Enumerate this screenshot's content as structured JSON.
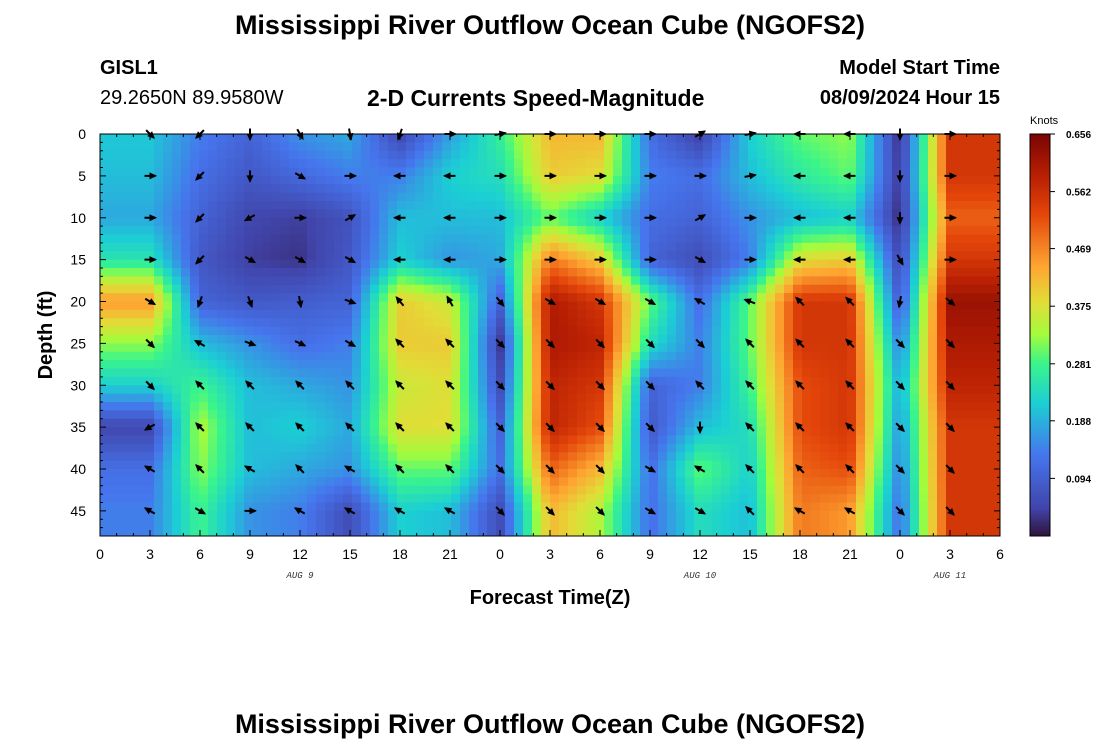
{
  "header": {
    "title": "Mississippi River Outflow Ocean Cube (NGOFS2)",
    "station_id": "GISL1",
    "station_coords": "29.2650N  89.9580W",
    "subtitle": "2-D Currents Speed-Magnitude",
    "model_start_label": "Model Start Time",
    "model_start_value": "08/09/2024 Hour 15"
  },
  "footer": {
    "title": "Mississippi River Outflow Ocean Cube (NGOFS2)"
  },
  "chart_data": {
    "type": "heatmap",
    "title": "2-D Currents Speed-Magnitude",
    "xlabel": "Forecast Time(Z)",
    "ylabel": "Depth (ft)",
    "x_tick_labels": [
      "0",
      "3",
      "6",
      "9",
      "12",
      "15",
      "18",
      "21",
      "0",
      "3",
      "6",
      "9",
      "12",
      "15",
      "18",
      "21",
      "0",
      "3",
      "6"
    ],
    "x_range_hours": [
      0,
      54
    ],
    "date_labels": [
      {
        "text": "AUG 9",
        "hour": 12
      },
      {
        "text": "AUG 10",
        "hour": 36
      },
      {
        "text": "AUG 11",
        "hour": 51
      }
    ],
    "y_ticks": [
      0,
      5,
      10,
      15,
      20,
      25,
      30,
      35,
      40,
      45
    ],
    "y_range_ft": [
      0,
      48
    ],
    "colorbar": {
      "unit": "Knots",
      "ticks": [
        "0.656",
        "0.562",
        "0.469",
        "0.375",
        "0.281",
        "0.188",
        "0.094"
      ],
      "min": 0.0,
      "max": 0.656
    },
    "times_hours": [
      3,
      6,
      9,
      12,
      15,
      18,
      21,
      24,
      27,
      30,
      33,
      36,
      39,
      42,
      45,
      48,
      51
    ],
    "depths_ft": [
      0,
      5,
      10,
      15,
      20,
      25,
      30,
      35,
      40,
      45
    ],
    "speed_knots": [
      [
        0.21,
        0.14,
        0.1,
        0.16,
        0.18,
        0.05,
        0.17,
        0.27,
        0.42,
        0.42,
        0.12,
        0.04,
        0.22,
        0.3,
        0.32,
        0.02,
        0.55
      ],
      [
        0.2,
        0.12,
        0.08,
        0.11,
        0.14,
        0.14,
        0.22,
        0.24,
        0.4,
        0.38,
        0.14,
        0.12,
        0.2,
        0.26,
        0.3,
        0.03,
        0.55
      ],
      [
        0.18,
        0.1,
        0.05,
        0.04,
        0.07,
        0.2,
        0.2,
        0.2,
        0.3,
        0.22,
        0.12,
        0.1,
        0.16,
        0.2,
        0.22,
        0.02,
        0.5
      ],
      [
        0.25,
        0.08,
        0.04,
        0.03,
        0.08,
        0.22,
        0.16,
        0.18,
        0.48,
        0.4,
        0.1,
        0.06,
        0.14,
        0.38,
        0.4,
        0.05,
        0.55
      ],
      [
        0.45,
        0.1,
        0.08,
        0.09,
        0.1,
        0.4,
        0.36,
        0.1,
        0.6,
        0.55,
        0.3,
        0.12,
        0.3,
        0.55,
        0.55,
        0.08,
        0.62
      ],
      [
        0.32,
        0.2,
        0.16,
        0.12,
        0.14,
        0.4,
        0.4,
        0.03,
        0.6,
        0.58,
        0.24,
        0.14,
        0.3,
        0.55,
        0.55,
        0.14,
        0.6
      ],
      [
        0.22,
        0.28,
        0.2,
        0.18,
        0.16,
        0.36,
        0.38,
        0.06,
        0.58,
        0.55,
        0.1,
        0.14,
        0.28,
        0.52,
        0.55,
        0.18,
        0.58
      ],
      [
        0.05,
        0.34,
        0.2,
        0.22,
        0.18,
        0.38,
        0.38,
        0.1,
        0.58,
        0.52,
        0.08,
        0.2,
        0.24,
        0.52,
        0.55,
        0.16,
        0.55
      ],
      [
        0.12,
        0.32,
        0.2,
        0.18,
        0.16,
        0.3,
        0.3,
        0.12,
        0.5,
        0.42,
        0.12,
        0.3,
        0.22,
        0.5,
        0.52,
        0.14,
        0.55
      ],
      [
        0.14,
        0.28,
        0.16,
        0.14,
        0.06,
        0.22,
        0.2,
        0.06,
        0.42,
        0.34,
        0.12,
        0.24,
        0.2,
        0.48,
        0.45,
        0.12,
        0.55
      ]
    ],
    "direction_deg": [
      [
        135,
        225,
        180,
        150,
        170,
        200,
        90,
        80,
        90,
        90,
        90,
        60,
        80,
        270,
        270,
        180,
        90
      ],
      [
        90,
        225,
        180,
        120,
        90,
        270,
        270,
        90,
        90,
        90,
        90,
        90,
        80,
        270,
        270,
        180,
        90
      ],
      [
        90,
        225,
        240,
        90,
        60,
        270,
        270,
        90,
        90,
        90,
        90,
        60,
        90,
        270,
        270,
        180,
        90
      ],
      [
        90,
        225,
        120,
        120,
        120,
        270,
        270,
        90,
        90,
        90,
        90,
        120,
        90,
        270,
        270,
        150,
        90
      ],
      [
        120,
        200,
        160,
        170,
        110,
        320,
        330,
        140,
        120,
        120,
        120,
        300,
        290,
        315,
        315,
        190,
        130
      ],
      [
        135,
        300,
        110,
        115,
        120,
        315,
        315,
        135,
        135,
        135,
        135,
        135,
        315,
        315,
        315,
        135,
        135
      ],
      [
        135,
        315,
        315,
        315,
        315,
        315,
        315,
        135,
        135,
        135,
        135,
        315,
        315,
        315,
        315,
        135,
        135
      ],
      [
        240,
        315,
        315,
        315,
        315,
        315,
        315,
        135,
        135,
        135,
        135,
        180,
        315,
        315,
        315,
        135,
        135
      ],
      [
        300,
        315,
        300,
        315,
        300,
        315,
        315,
        135,
        135,
        135,
        120,
        300,
        315,
        315,
        315,
        135,
        135
      ],
      [
        300,
        120,
        90,
        300,
        300,
        300,
        300,
        135,
        135,
        135,
        120,
        120,
        315,
        300,
        300,
        135,
        135
      ]
    ]
  }
}
